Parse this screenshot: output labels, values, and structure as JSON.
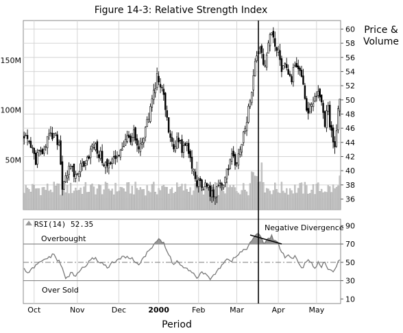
{
  "chart_data": [
    {
      "type": "candlestick",
      "panel": "price",
      "title": "Figure 14-3: Relative Strength Index",
      "ylabel": "Price & Volume",
      "y_ticks": [
        "60",
        "58",
        "56",
        "54",
        "52",
        "50",
        "48",
        "46",
        "44",
        "42",
        "40",
        "38",
        "36"
      ],
      "ylim": [
        34.5,
        61.2
      ],
      "volume_ticks": [
        "150M",
        "100M",
        "50M"
      ],
      "volume_ylim": [
        0,
        190
      ],
      "grid": true,
      "price_anchors": [
        {
          "day": 0,
          "p": 44.5
        },
        {
          "day": 3,
          "p": 44
        },
        {
          "day": 7,
          "p": 41.5
        },
        {
          "day": 10,
          "p": 42.5
        },
        {
          "day": 14,
          "p": 44.5
        },
        {
          "day": 18,
          "p": 44.8
        },
        {
          "day": 21,
          "p": 44
        },
        {
          "day": 23,
          "p": 38
        },
        {
          "day": 25,
          "p": 39.5
        },
        {
          "day": 28,
          "p": 40.2
        },
        {
          "day": 31,
          "p": 39.2
        },
        {
          "day": 34,
          "p": 40.5
        },
        {
          "day": 38,
          "p": 42
        },
        {
          "day": 42,
          "p": 43.5
        },
        {
          "day": 46,
          "p": 42
        },
        {
          "day": 50,
          "p": 40.5
        },
        {
          "day": 54,
          "p": 41.5
        },
        {
          "day": 58,
          "p": 43
        },
        {
          "day": 62,
          "p": 44.5
        },
        {
          "day": 66,
          "p": 45
        },
        {
          "day": 69,
          "p": 42.5
        },
        {
          "day": 72,
          "p": 44.5
        },
        {
          "day": 75,
          "p": 47.5
        },
        {
          "day": 78,
          "p": 51
        },
        {
          "day": 80,
          "p": 53.5
        },
        {
          "day": 82,
          "p": 52
        },
        {
          "day": 84,
          "p": 50.5
        },
        {
          "day": 86,
          "p": 47
        },
        {
          "day": 88,
          "p": 45
        },
        {
          "day": 90,
          "p": 43.5
        },
        {
          "day": 92,
          "p": 44.5
        },
        {
          "day": 95,
          "p": 43
        },
        {
          "day": 98,
          "p": 43.5
        },
        {
          "day": 101,
          "p": 40.5
        },
        {
          "day": 104,
          "p": 38.5
        },
        {
          "day": 107,
          "p": 37.5
        },
        {
          "day": 110,
          "p": 38
        },
        {
          "day": 113,
          "p": 36.5
        },
        {
          "day": 116,
          "p": 37
        },
        {
          "day": 119,
          "p": 38
        },
        {
          "day": 122,
          "p": 40
        },
        {
          "day": 125,
          "p": 42
        },
        {
          "day": 128,
          "p": 40.5
        },
        {
          "day": 131,
          "p": 44
        },
        {
          "day": 134,
          "p": 47
        },
        {
          "day": 137,
          "p": 51
        },
        {
          "day": 139,
          "p": 55
        },
        {
          "day": 141,
          "p": 57.5
        },
        {
          "day": 143,
          "p": 56
        },
        {
          "day": 145,
          "p": 55
        },
        {
          "day": 147,
          "p": 58
        },
        {
          "day": 149,
          "p": 59.3
        },
        {
          "day": 151,
          "p": 58
        },
        {
          "day": 153,
          "p": 57
        },
        {
          "day": 155,
          "p": 54.5
        },
        {
          "day": 157,
          "p": 55.5
        },
        {
          "day": 159,
          "p": 54
        },
        {
          "day": 161,
          "p": 53.2
        },
        {
          "day": 163,
          "p": 55.5
        },
        {
          "day": 165,
          "p": 55
        },
        {
          "day": 167,
          "p": 52.5
        },
        {
          "day": 169,
          "p": 50.5
        },
        {
          "day": 171,
          "p": 48
        },
        {
          "day": 173,
          "p": 49.5
        },
        {
          "day": 175,
          "p": 50.5
        },
        {
          "day": 177,
          "p": 51.5
        },
        {
          "day": 179,
          "p": 49
        },
        {
          "day": 181,
          "p": 47
        },
        {
          "day": 183,
          "p": 48.5
        },
        {
          "day": 185,
          "p": 45
        },
        {
          "day": 187,
          "p": 44
        },
        {
          "day": 189,
          "p": 48.5
        },
        {
          "day": 190,
          "p": 50.5
        }
      ],
      "days": 191
    },
    {
      "type": "line",
      "panel": "indicator",
      "legend": "RSI(14) 52.35",
      "y_ticks": [
        "90",
        "70",
        "50",
        "30",
        "10"
      ],
      "ylim": [
        5,
        97
      ],
      "reference_lines": [
        70,
        50,
        30
      ],
      "annotations": [
        "Overbought",
        "Over Sold",
        "Negative Divergence"
      ],
      "rsi_anchors": [
        {
          "day": 0,
          "v": 42
        },
        {
          "day": 3,
          "v": 38
        },
        {
          "day": 6,
          "v": 45
        },
        {
          "day": 10,
          "v": 50
        },
        {
          "day": 14,
          "v": 55
        },
        {
          "day": 18,
          "v": 58
        },
        {
          "day": 22,
          "v": 48
        },
        {
          "day": 25,
          "v": 32
        },
        {
          "day": 28,
          "v": 38
        },
        {
          "day": 31,
          "v": 35
        },
        {
          "day": 34,
          "v": 42
        },
        {
          "day": 38,
          "v": 48
        },
        {
          "day": 42,
          "v": 55
        },
        {
          "day": 46,
          "v": 50
        },
        {
          "day": 50,
          "v": 45
        },
        {
          "day": 54,
          "v": 50
        },
        {
          "day": 58,
          "v": 54
        },
        {
          "day": 62,
          "v": 57
        },
        {
          "day": 66,
          "v": 52
        },
        {
          "day": 69,
          "v": 48
        },
        {
          "day": 72,
          "v": 55
        },
        {
          "day": 75,
          "v": 62
        },
        {
          "day": 78,
          "v": 70
        },
        {
          "day": 81,
          "v": 76
        },
        {
          "day": 84,
          "v": 70
        },
        {
          "day": 86,
          "v": 62
        },
        {
          "day": 88,
          "v": 55
        },
        {
          "day": 90,
          "v": 47
        },
        {
          "day": 92,
          "v": 52
        },
        {
          "day": 95,
          "v": 45
        },
        {
          "day": 98,
          "v": 42
        },
        {
          "day": 101,
          "v": 38
        },
        {
          "day": 104,
          "v": 34
        },
        {
          "day": 107,
          "v": 38
        },
        {
          "day": 110,
          "v": 35
        },
        {
          "day": 113,
          "v": 32
        },
        {
          "day": 116,
          "v": 40
        },
        {
          "day": 119,
          "v": 48
        },
        {
          "day": 122,
          "v": 55
        },
        {
          "day": 125,
          "v": 52
        },
        {
          "day": 128,
          "v": 58
        },
        {
          "day": 131,
          "v": 62
        },
        {
          "day": 134,
          "v": 66
        },
        {
          "day": 137,
          "v": 72
        },
        {
          "day": 139,
          "v": 80
        },
        {
          "day": 141,
          "v": 82
        },
        {
          "day": 143,
          "v": 74
        },
        {
          "day": 145,
          "v": 71
        },
        {
          "day": 147,
          "v": 76
        },
        {
          "day": 149,
          "v": 78
        },
        {
          "day": 151,
          "v": 74
        },
        {
          "day": 153,
          "v": 70
        },
        {
          "day": 155,
          "v": 62
        },
        {
          "day": 157,
          "v": 55
        },
        {
          "day": 159,
          "v": 58
        },
        {
          "day": 161,
          "v": 54
        },
        {
          "day": 163,
          "v": 57
        },
        {
          "day": 165,
          "v": 50
        },
        {
          "day": 167,
          "v": 44
        },
        {
          "day": 169,
          "v": 48
        },
        {
          "day": 171,
          "v": 52
        },
        {
          "day": 173,
          "v": 48
        },
        {
          "day": 175,
          "v": 45
        },
        {
          "day": 177,
          "v": 50
        },
        {
          "day": 179,
          "v": 46
        },
        {
          "day": 181,
          "v": 50
        },
        {
          "day": 183,
          "v": 44
        },
        {
          "day": 185,
          "v": 40
        },
        {
          "day": 187,
          "v": 43
        },
        {
          "day": 189,
          "v": 50
        },
        {
          "day": 190,
          "v": 52
        }
      ]
    }
  ],
  "x_axis": {
    "label": "Period",
    "months": [
      {
        "label": "Oct",
        "day": 6
      },
      {
        "label": "Nov",
        "day": 32
      },
      {
        "label": "Dec",
        "day": 57
      },
      {
        "label": "2000",
        "day": 81
      },
      {
        "label": "Feb",
        "day": 105
      },
      {
        "label": "Mar",
        "day": 128
      },
      {
        "label": "Apr",
        "day": 153
      },
      {
        "label": "May",
        "day": 176
      }
    ],
    "marker_day": 141
  },
  "colors": {
    "candle": "#000000",
    "volume": "#c8c8c8",
    "grid": "#d4d4d4",
    "rsi_line": "#777777",
    "fill": "#999999",
    "reference": "#888888"
  }
}
